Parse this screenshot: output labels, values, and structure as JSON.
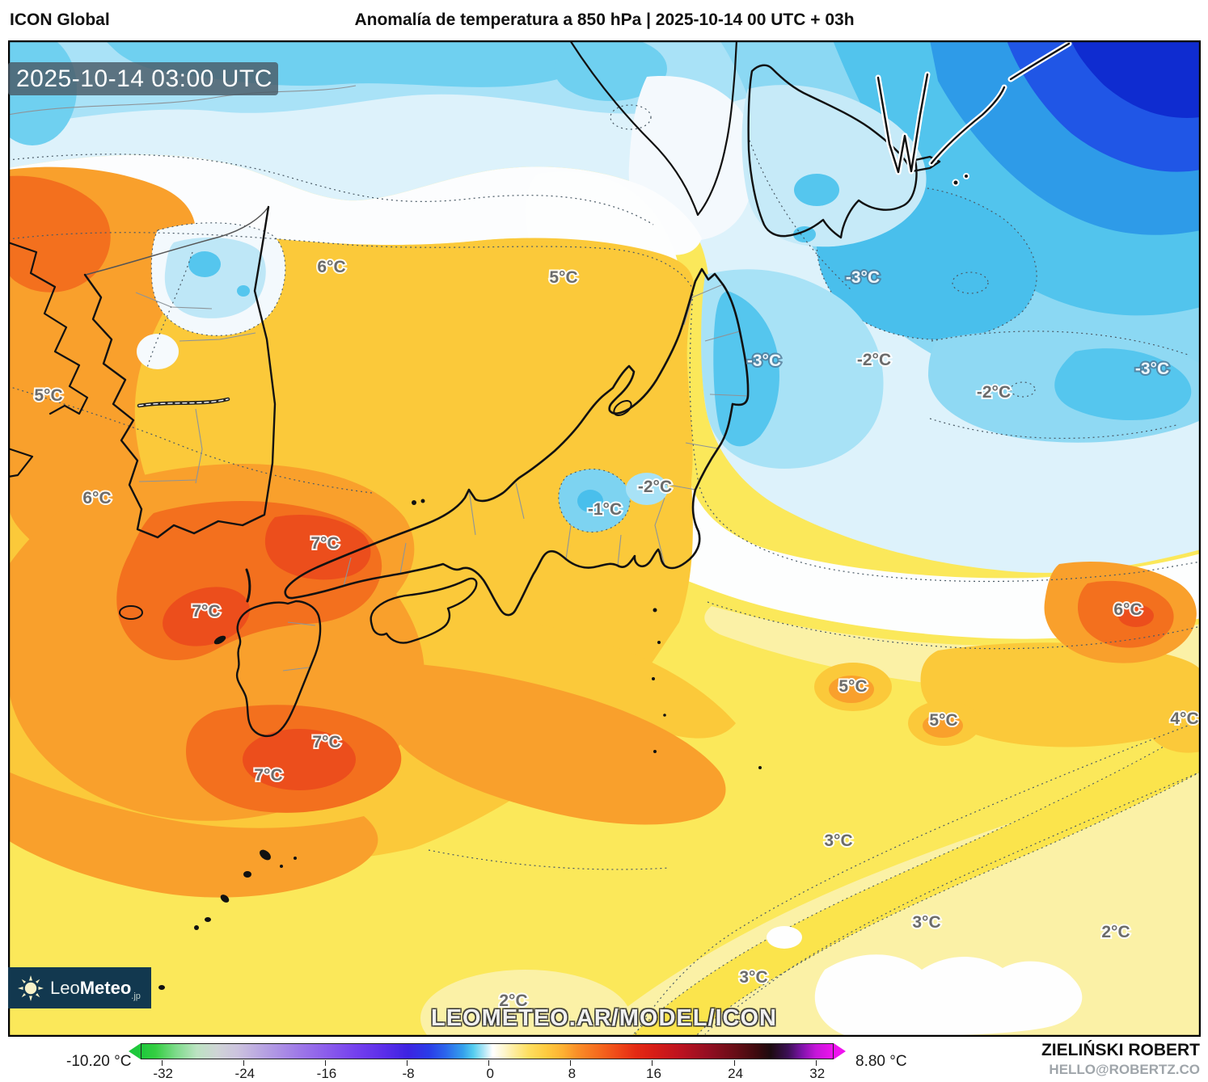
{
  "header": {
    "model": "ICON Global",
    "title": "Anomalía de temperatura a 850 hPa | 2025-10-14 00 UTC + 03h"
  },
  "map": {
    "timestamp": "2025-10-14 03:00 UTC",
    "watermark": "LEOMETEO.AR/MODEL/ICON",
    "labels": [
      {
        "text": "6°C"
      },
      {
        "text": "5°C"
      },
      {
        "text": "-3°C"
      },
      {
        "text": "5°C"
      },
      {
        "text": "-3°C"
      },
      {
        "text": "-2°C"
      },
      {
        "text": "-2°C"
      },
      {
        "text": "-3°C"
      },
      {
        "text": "6°C"
      },
      {
        "text": "-2°C"
      },
      {
        "text": "-1°C"
      },
      {
        "text": "7°C"
      },
      {
        "text": "7°C"
      },
      {
        "text": "6°C"
      },
      {
        "text": "5°C"
      },
      {
        "text": "5°C"
      },
      {
        "text": "4°C"
      },
      {
        "text": "7°C"
      },
      {
        "text": "7°C"
      },
      {
        "text": "3°C"
      },
      {
        "text": "3°C"
      },
      {
        "text": "2°C"
      },
      {
        "text": "3°C"
      },
      {
        "text": "2°C"
      }
    ]
  },
  "logo": {
    "brand_light": "Leo",
    "brand_bold": "Meteo",
    "brand_suffix": ".jp"
  },
  "colorbar": {
    "min_label": "-10.20 °C",
    "max_label": "8.80 °C",
    "ticks": [
      "-32",
      "-24",
      "-16",
      "-8",
      "0",
      "8",
      "16",
      "24",
      "32"
    ],
    "gradient": [
      [
        "#1FC83C",
        0
      ],
      [
        "#34CE42",
        2
      ],
      [
        "#7EDB8B",
        5
      ],
      [
        "#BCE3C2",
        8
      ],
      [
        "#CFD4D6",
        11
      ],
      [
        "#CBC2DE",
        14
      ],
      [
        "#B5A0E2",
        18
      ],
      [
        "#9D77E8",
        23
      ],
      [
        "#8A5BEC",
        27
      ],
      [
        "#7440EE",
        31
      ],
      [
        "#5B2EEA",
        35
      ],
      [
        "#3D23E2",
        38.5
      ],
      [
        "#2A3BE8",
        41.5
      ],
      [
        "#2B66EC",
        44
      ],
      [
        "#34A0EC",
        46.5
      ],
      [
        "#55CDEF",
        48
      ],
      [
        "#AEE6F6",
        49.5
      ],
      [
        "#FFFFFF",
        50.8
      ],
      [
        "#FEF6CC",
        52.5
      ],
      [
        "#FEEC9A",
        54
      ],
      [
        "#FEDE60",
        56
      ],
      [
        "#FECB40",
        58.5
      ],
      [
        "#FDB032",
        61
      ],
      [
        "#FA8F28",
        63
      ],
      [
        "#F66B1F",
        66
      ],
      [
        "#EF4718",
        69
      ],
      [
        "#E42A14",
        71.5
      ],
      [
        "#D81D16",
        74
      ],
      [
        "#BC1220",
        78
      ],
      [
        "#930E22",
        82
      ],
      [
        "#660D16",
        86
      ],
      [
        "#3D0A0E",
        89
      ],
      [
        "#1C0B10",
        91
      ],
      [
        "#3B1054",
        93.5
      ],
      [
        "#7D13A8",
        95.5
      ],
      [
        "#C316D8",
        97.5
      ],
      [
        "#EE13EE",
        100
      ]
    ]
  },
  "attribution": {
    "name": "ZIELIŃSKI ROBERT",
    "email": "HELLO@ROBERTZ.CO"
  },
  "palette": {
    "yellow": "#FBE85A",
    "pale_yellow": "#FBF1A6",
    "gold": "#FBC93A",
    "orange": "#F9A02C",
    "deep_orange": "#F3701E",
    "red_orange": "#EC4E1C",
    "white_zero": "#FFFFFF",
    "light_blue": "#AEE4F7",
    "cyan": "#55C6EE",
    "mid_blue": "#2E9BE8",
    "deep_blue": "#0F2CD0",
    "logo_bg": "#12384F",
    "stamp_bg": "#495A66"
  }
}
